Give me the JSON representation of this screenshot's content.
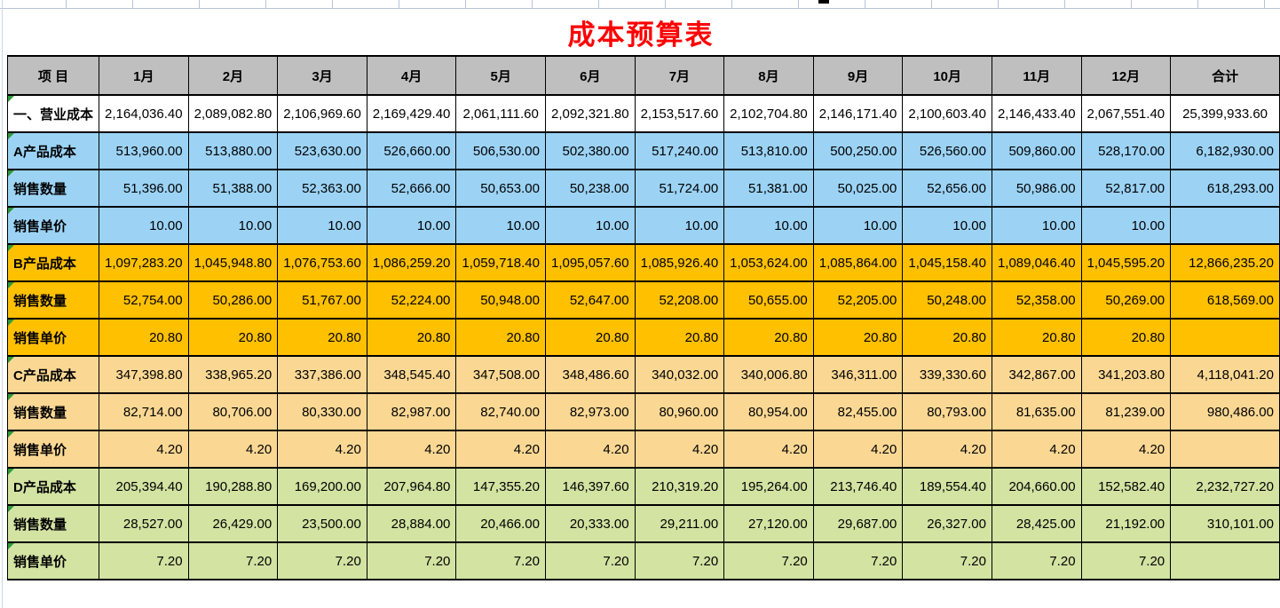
{
  "title": "成本预算表",
  "colors": {
    "title": "#ff0000",
    "header_bg": "#bfbfbf",
    "white": "#ffffff",
    "blue": "#9cd3f5",
    "orange": "#ffc000",
    "tan": "#fad894",
    "green": "#d2e3a2",
    "gridline": "#b7c3dc",
    "border": "#000000",
    "error_triangle": "#2e9a3c"
  },
  "table": {
    "columns": [
      "项  目",
      "1月",
      "2月",
      "3月",
      "4月",
      "5月",
      "6月",
      "7月",
      "8月",
      "9月",
      "10月",
      "11月",
      "12月",
      "合计"
    ],
    "rows": [
      {
        "label": "一、营业成本",
        "bg": "white",
        "align": "center",
        "values": [
          "2,164,036.40",
          "2,089,082.80",
          "2,106,969.60",
          "2,169,429.40",
          "2,061,111.60",
          "2,092,321.80",
          "2,153,517.60",
          "2,102,704.80",
          "2,146,171.40",
          "2,100,603.40",
          "2,146,433.40",
          "2,067,551.40"
        ],
        "total": "25,399,933.60"
      },
      {
        "label": "A产品成本",
        "bg": "blue",
        "align": "right",
        "values": [
          "513,960.00",
          "513,880.00",
          "523,630.00",
          "526,660.00",
          "506,530.00",
          "502,380.00",
          "517,240.00",
          "513,810.00",
          "500,250.00",
          "526,560.00",
          "509,860.00",
          "528,170.00"
        ],
        "total": "6,182,930.00"
      },
      {
        "label": "销售数量",
        "bg": "blue",
        "align": "right",
        "values": [
          "51,396.00",
          "51,388.00",
          "52,363.00",
          "52,666.00",
          "50,653.00",
          "50,238.00",
          "51,724.00",
          "51,381.00",
          "50,025.00",
          "52,656.00",
          "50,986.00",
          "52,817.00"
        ],
        "total": "618,293.00"
      },
      {
        "label": "销售单价",
        "bg": "blue",
        "align": "right",
        "values": [
          "10.00",
          "10.00",
          "10.00",
          "10.00",
          "10.00",
          "10.00",
          "10.00",
          "10.00",
          "10.00",
          "10.00",
          "10.00",
          "10.00"
        ],
        "total": ""
      },
      {
        "label": "B产品成本",
        "bg": "orange",
        "align": "right",
        "values": [
          "1,097,283.20",
          "1,045,948.80",
          "1,076,753.60",
          "1,086,259.20",
          "1,059,718.40",
          "1,095,057.60",
          "1,085,926.40",
          "1,053,624.00",
          "1,085,864.00",
          "1,045,158.40",
          "1,089,046.40",
          "1,045,595.20"
        ],
        "total": "12,866,235.20"
      },
      {
        "label": "销售数量",
        "bg": "orange",
        "align": "right",
        "values": [
          "52,754.00",
          "50,286.00",
          "51,767.00",
          "52,224.00",
          "50,948.00",
          "52,647.00",
          "52,208.00",
          "50,655.00",
          "52,205.00",
          "50,248.00",
          "52,358.00",
          "50,269.00"
        ],
        "total": "618,569.00"
      },
      {
        "label": "销售单价",
        "bg": "orange",
        "align": "right",
        "values": [
          "20.80",
          "20.80",
          "20.80",
          "20.80",
          "20.80",
          "20.80",
          "20.80",
          "20.80",
          "20.80",
          "20.80",
          "20.80",
          "20.80"
        ],
        "total": ""
      },
      {
        "label": "C产品成本",
        "bg": "tan",
        "align": "right",
        "values": [
          "347,398.80",
          "338,965.20",
          "337,386.00",
          "348,545.40",
          "347,508.00",
          "348,486.60",
          "340,032.00",
          "340,006.80",
          "346,311.00",
          "339,330.60",
          "342,867.00",
          "341,203.80"
        ],
        "total": "4,118,041.20"
      },
      {
        "label": "销售数量",
        "bg": "tan",
        "align": "right",
        "values": [
          "82,714.00",
          "80,706.00",
          "80,330.00",
          "82,987.00",
          "82,740.00",
          "82,973.00",
          "80,960.00",
          "80,954.00",
          "82,455.00",
          "80,793.00",
          "81,635.00",
          "81,239.00"
        ],
        "total": "980,486.00"
      },
      {
        "label": "销售单价",
        "bg": "tan",
        "align": "right",
        "values": [
          "4.20",
          "4.20",
          "4.20",
          "4.20",
          "4.20",
          "4.20",
          "4.20",
          "4.20",
          "4.20",
          "4.20",
          "4.20",
          "4.20"
        ],
        "total": ""
      },
      {
        "label": "D产品成本",
        "bg": "green",
        "align": "right",
        "values": [
          "205,394.40",
          "190,288.80",
          "169,200.00",
          "207,964.80",
          "147,355.20",
          "146,397.60",
          "210,319.20",
          "195,264.00",
          "213,746.40",
          "189,554.40",
          "204,660.00",
          "152,582.40"
        ],
        "total": "2,232,727.20"
      },
      {
        "label": "销售数量",
        "bg": "green",
        "align": "right",
        "values": [
          "28,527.00",
          "26,429.00",
          "23,500.00",
          "28,884.00",
          "20,466.00",
          "20,333.00",
          "29,211.00",
          "27,120.00",
          "29,687.00",
          "26,327.00",
          "28,425.00",
          "21,192.00"
        ],
        "total": "310,101.00"
      },
      {
        "label": "销售单价",
        "bg": "green",
        "align": "right",
        "values": [
          "7.20",
          "7.20",
          "7.20",
          "7.20",
          "7.20",
          "7.20",
          "7.20",
          "7.20",
          "7.20",
          "7.20",
          "7.20",
          "7.20"
        ],
        "total": ""
      }
    ]
  },
  "layout_hints": {
    "label_col_width": 102,
    "month_col_width": 100,
    "total_col_width": 123
  }
}
